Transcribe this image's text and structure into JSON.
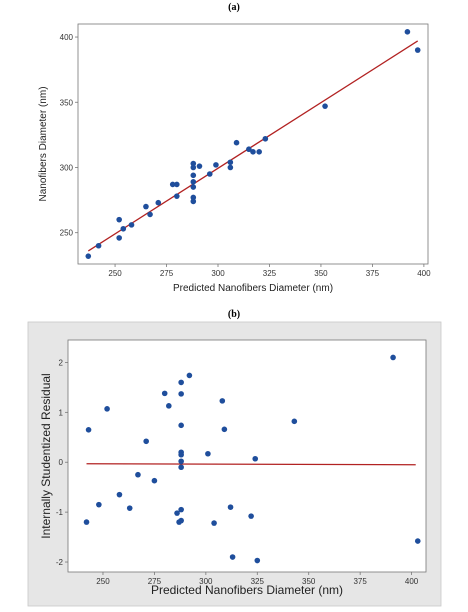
{
  "chart_data": [
    {
      "panel_label": "(a)",
      "type": "scatter",
      "xlabel": "Predicted Nanofibers Diameter (nm)",
      "ylabel": "Nanofibers Diameter (nm)",
      "xlim": [
        232,
        402
      ],
      "ylim": [
        226,
        410
      ],
      "xticks": [
        250,
        275,
        300,
        325,
        350,
        375,
        400
      ],
      "yticks": [
        250,
        300,
        350,
        400
      ],
      "grid": false,
      "background": "#ffffff",
      "point_color": "#1f4e9c",
      "line_color": "#b22222",
      "fit_line": {
        "x": [
          237,
          397
        ],
        "y": [
          236,
          397
        ]
      },
      "points": [
        {
          "x": 237,
          "y": 232
        },
        {
          "x": 242,
          "y": 240
        },
        {
          "x": 252,
          "y": 246
        },
        {
          "x": 252,
          "y": 260
        },
        {
          "x": 254,
          "y": 253
        },
        {
          "x": 258,
          "y": 256
        },
        {
          "x": 265,
          "y": 270
        },
        {
          "x": 267,
          "y": 264
        },
        {
          "x": 271,
          "y": 273
        },
        {
          "x": 278,
          "y": 287
        },
        {
          "x": 280,
          "y": 278
        },
        {
          "x": 280,
          "y": 287
        },
        {
          "x": 288,
          "y": 303
        },
        {
          "x": 288,
          "y": 300
        },
        {
          "x": 288,
          "y": 294
        },
        {
          "x": 288,
          "y": 289
        },
        {
          "x": 288,
          "y": 285
        },
        {
          "x": 288,
          "y": 277
        },
        {
          "x": 288,
          "y": 274
        },
        {
          "x": 291,
          "y": 301
        },
        {
          "x": 296,
          "y": 295
        },
        {
          "x": 299,
          "y": 302
        },
        {
          "x": 306,
          "y": 304
        },
        {
          "x": 306,
          "y": 300
        },
        {
          "x": 309,
          "y": 319
        },
        {
          "x": 315,
          "y": 314
        },
        {
          "x": 317,
          "y": 312
        },
        {
          "x": 320,
          "y": 312
        },
        {
          "x": 323,
          "y": 322
        },
        {
          "x": 352,
          "y": 347
        },
        {
          "x": 392,
          "y": 404
        },
        {
          "x": 397,
          "y": 390
        }
      ]
    },
    {
      "panel_label": "(b)",
      "type": "scatter",
      "xlabel": "Predicted Nanofibers Diameter (nm)",
      "ylabel": "Internally Studentized Residual",
      "xlim": [
        233,
        407
      ],
      "ylim": [
        -2.2,
        2.45
      ],
      "xticks": [
        250,
        275,
        300,
        325,
        350,
        375,
        400
      ],
      "yticks": [
        -2,
        -1,
        0,
        1,
        2
      ],
      "grid": false,
      "background": "#e6e6e6",
      "plot_background": "#ffffff",
      "point_color": "#1f4e9c",
      "line_color": "#b22222",
      "fit_line": {
        "x": [
          242,
          402
        ],
        "y": [
          -0.03,
          -0.05
        ]
      },
      "points": [
        {
          "x": 242,
          "y": -1.2
        },
        {
          "x": 243,
          "y": 0.65
        },
        {
          "x": 248,
          "y": -0.85
        },
        {
          "x": 252,
          "y": 1.07
        },
        {
          "x": 258,
          "y": -0.65
        },
        {
          "x": 263,
          "y": -0.92
        },
        {
          "x": 267,
          "y": -0.25
        },
        {
          "x": 271,
          "y": 0.42
        },
        {
          "x": 275,
          "y": -0.37
        },
        {
          "x": 280,
          "y": 1.38
        },
        {
          "x": 282,
          "y": 1.13
        },
        {
          "x": 286,
          "y": -1.02
        },
        {
          "x": 287,
          "y": -1.2
        },
        {
          "x": 288,
          "y": -1.17
        },
        {
          "x": 288,
          "y": -0.95
        },
        {
          "x": 288,
          "y": 1.6
        },
        {
          "x": 288,
          "y": 1.37
        },
        {
          "x": 288,
          "y": 0.74
        },
        {
          "x": 288,
          "y": 0.2
        },
        {
          "x": 288,
          "y": 0.15
        },
        {
          "x": 288,
          "y": 0.02
        },
        {
          "x": 288,
          "y": -0.1
        },
        {
          "x": 292,
          "y": 1.74
        },
        {
          "x": 301,
          "y": 0.17
        },
        {
          "x": 304,
          "y": -1.22
        },
        {
          "x": 308,
          "y": 1.23
        },
        {
          "x": 309,
          "y": 0.66
        },
        {
          "x": 312,
          "y": -0.9
        },
        {
          "x": 313,
          "y": -1.9
        },
        {
          "x": 322,
          "y": -1.08
        },
        {
          "x": 324,
          "y": 0.07
        },
        {
          "x": 325,
          "y": -1.97
        },
        {
          "x": 343,
          "y": 0.82
        },
        {
          "x": 391,
          "y": 2.1
        },
        {
          "x": 403,
          "y": -1.58
        }
      ]
    }
  ]
}
